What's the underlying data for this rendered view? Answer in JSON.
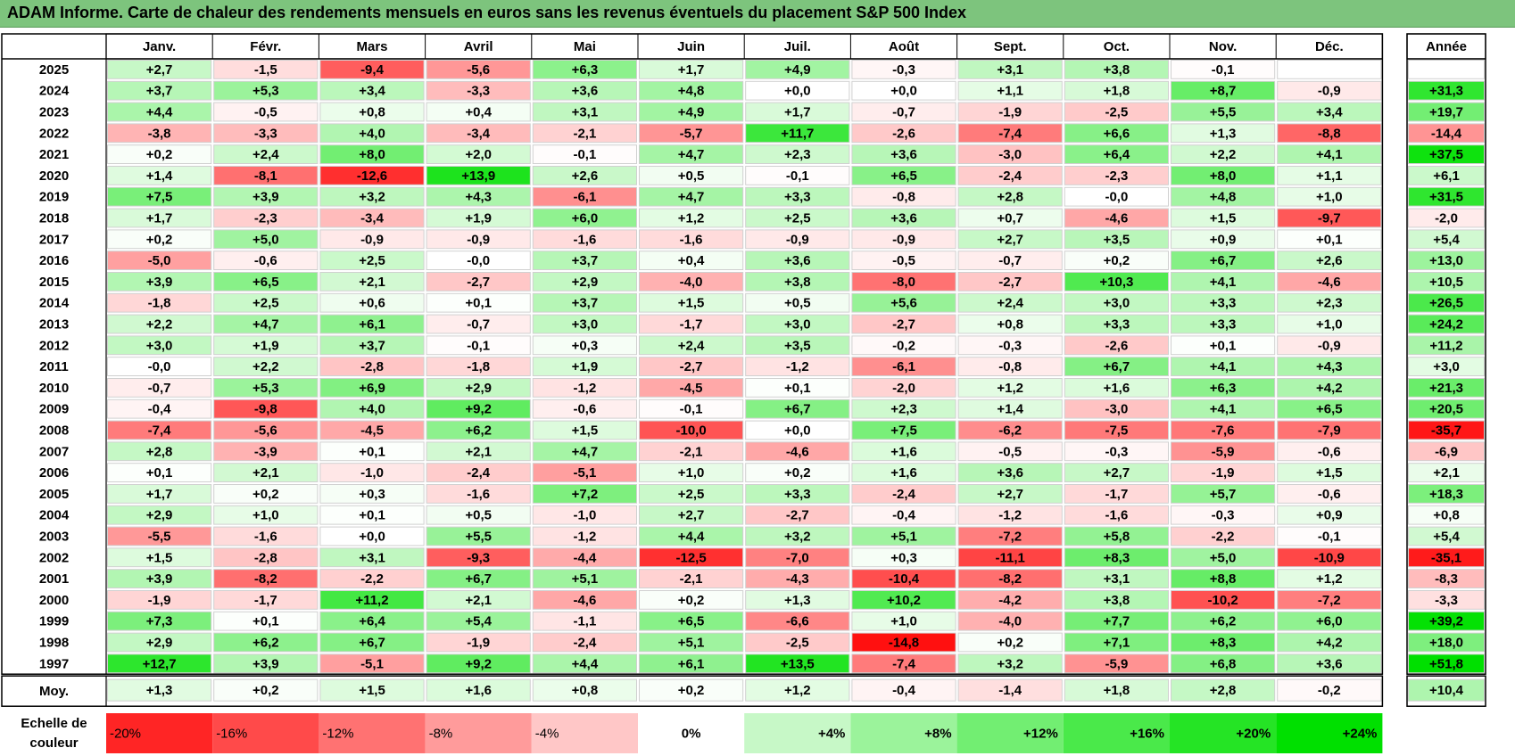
{
  "title": "ADAM Informe. Carte de chaleur des rendements mensuels en euros sans les revenus éventuels du placement S&P 500 Index",
  "chart_data": {
    "type": "heatmap",
    "title": "ADAM Informe. Carte de chaleur des rendements mensuels en euros sans les revenus éventuels du placement S&P 500 Index",
    "months": [
      "Janv.",
      "Févr.",
      "Mars",
      "Avril",
      "Mai",
      "Juin",
      "Juil.",
      "Août",
      "Sept.",
      "Oct.",
      "Nov.",
      "Déc."
    ],
    "year_header": "Année",
    "rows": [
      {
        "year": "2025",
        "values": [
          "+2,7",
          "-1,5",
          "-9,4",
          "-5,6",
          "+6,3",
          "+1,7",
          "+4,9",
          "-0,3",
          "+3,1",
          "+3,8",
          "-0,1",
          ""
        ],
        "annual": ""
      },
      {
        "year": "2024",
        "values": [
          "+3,7",
          "+5,3",
          "+3,4",
          "-3,3",
          "+3,6",
          "+4,8",
          "+0,0",
          "+0,0",
          "+1,1",
          "+1,8",
          "+8,7",
          "-0,9"
        ],
        "annual": "+31,3"
      },
      {
        "year": "2023",
        "values": [
          "+4,4",
          "-0,5",
          "+0,8",
          "+0,4",
          "+3,1",
          "+4,9",
          "+1,7",
          "-0,7",
          "-1,9",
          "-2,5",
          "+5,5",
          "+3,4"
        ],
        "annual": "+19,7"
      },
      {
        "year": "2022",
        "values": [
          "-3,8",
          "-3,3",
          "+4,0",
          "-3,4",
          "-2,1",
          "-5,7",
          "+11,7",
          "-2,6",
          "-7,4",
          "+6,6",
          "+1,3",
          "-8,8"
        ],
        "annual": "-14,4"
      },
      {
        "year": "2021",
        "values": [
          "+0,2",
          "+2,4",
          "+8,0",
          "+2,0",
          "-0,1",
          "+4,7",
          "+2,3",
          "+3,6",
          "-3,0",
          "+6,4",
          "+2,2",
          "+4,1"
        ],
        "annual": "+37,5"
      },
      {
        "year": "2020",
        "values": [
          "+1,4",
          "-8,1",
          "-12,6",
          "+13,9",
          "+2,6",
          "+0,5",
          "-0,1",
          "+6,5",
          "-2,4",
          "-2,3",
          "+8,0",
          "+1,1"
        ],
        "annual": "+6,1"
      },
      {
        "year": "2019",
        "values": [
          "+7,5",
          "+3,9",
          "+3,2",
          "+4,3",
          "-6,1",
          "+4,7",
          "+3,3",
          "-0,8",
          "+2,8",
          "-0,0",
          "+4,8",
          "+1,0"
        ],
        "annual": "+31,5"
      },
      {
        "year": "2018",
        "values": [
          "+1,7",
          "-2,3",
          "-3,4",
          "+1,9",
          "+6,0",
          "+1,2",
          "+2,5",
          "+3,6",
          "+0,7",
          "-4,6",
          "+1,5",
          "-9,7"
        ],
        "annual": "-2,0"
      },
      {
        "year": "2017",
        "values": [
          "+0,2",
          "+5,0",
          "-0,9",
          "-0,9",
          "-1,6",
          "-1,6",
          "-0,9",
          "-0,9",
          "+2,7",
          "+3,5",
          "+0,9",
          "+0,1"
        ],
        "annual": "+5,4"
      },
      {
        "year": "2016",
        "values": [
          "-5,0",
          "-0,6",
          "+2,5",
          "-0,0",
          "+3,7",
          "+0,4",
          "+3,6",
          "-0,5",
          "-0,7",
          "+0,2",
          "+6,7",
          "+2,6"
        ],
        "annual": "+13,0"
      },
      {
        "year": "2015",
        "values": [
          "+3,9",
          "+6,5",
          "+2,1",
          "-2,7",
          "+2,9",
          "-4,0",
          "+3,8",
          "-8,0",
          "-2,7",
          "+10,3",
          "+4,1",
          "-4,6"
        ],
        "annual": "+10,5"
      },
      {
        "year": "2014",
        "values": [
          "-1,8",
          "+2,5",
          "+0,6",
          "+0,1",
          "+3,7",
          "+1,5",
          "+0,5",
          "+5,6",
          "+2,4",
          "+3,0",
          "+3,3",
          "+2,3"
        ],
        "annual": "+26,5"
      },
      {
        "year": "2013",
        "values": [
          "+2,2",
          "+4,7",
          "+6,1",
          "-0,7",
          "+3,0",
          "-1,7",
          "+3,0",
          "-2,7",
          "+0,8",
          "+3,3",
          "+3,3",
          "+1,0"
        ],
        "annual": "+24,2"
      },
      {
        "year": "2012",
        "values": [
          "+3,0",
          "+1,9",
          "+3,7",
          "-0,1",
          "+0,3",
          "+2,4",
          "+3,5",
          "-0,2",
          "-0,3",
          "-2,6",
          "+0,1",
          "-0,9"
        ],
        "annual": "+11,2"
      },
      {
        "year": "2011",
        "values": [
          "-0,0",
          "+2,2",
          "-2,8",
          "-1,8",
          "+1,9",
          "-2,7",
          "-1,2",
          "-6,1",
          "-0,8",
          "+6,7",
          "+4,1",
          "+4,3"
        ],
        "annual": "+3,0"
      },
      {
        "year": "2010",
        "values": [
          "-0,7",
          "+5,3",
          "+6,9",
          "+2,9",
          "-1,2",
          "-4,5",
          "+0,1",
          "-2,0",
          "+1,2",
          "+1,6",
          "+6,3",
          "+4,2"
        ],
        "annual": "+21,3"
      },
      {
        "year": "2009",
        "values": [
          "-0,4",
          "-9,8",
          "+4,0",
          "+9,2",
          "-0,6",
          "-0,1",
          "+6,7",
          "+2,3",
          "+1,4",
          "-3,0",
          "+4,1",
          "+6,5"
        ],
        "annual": "+20,5"
      },
      {
        "year": "2008",
        "values": [
          "-7,4",
          "-5,6",
          "-4,5",
          "+6,2",
          "+1,5",
          "-10,0",
          "+0,0",
          "+7,5",
          "-6,2",
          "-7,5",
          "-7,6",
          "-7,9"
        ],
        "annual": "-35,7"
      },
      {
        "year": "2007",
        "values": [
          "+2,8",
          "-3,9",
          "+0,1",
          "+2,1",
          "+4,7",
          "-2,1",
          "-4,6",
          "+1,6",
          "-0,5",
          "-0,3",
          "-5,9",
          "-0,6"
        ],
        "annual": "-6,9"
      },
      {
        "year": "2006",
        "values": [
          "+0,1",
          "+2,1",
          "-1,0",
          "-2,4",
          "-5,1",
          "+1,0",
          "+0,2",
          "+1,6",
          "+3,6",
          "+2,7",
          "-1,9",
          "+1,5"
        ],
        "annual": "+2,1"
      },
      {
        "year": "2005",
        "values": [
          "+1,7",
          "+0,2",
          "+0,3",
          "-1,6",
          "+7,2",
          "+2,5",
          "+3,3",
          "-2,4",
          "+2,7",
          "-1,7",
          "+5,7",
          "-0,6"
        ],
        "annual": "+18,3"
      },
      {
        "year": "2004",
        "values": [
          "+2,9",
          "+1,0",
          "+0,1",
          "+0,5",
          "-1,0",
          "+2,7",
          "-2,7",
          "-0,4",
          "-1,2",
          "-1,6",
          "-0,3",
          "+0,9"
        ],
        "annual": "+0,8"
      },
      {
        "year": "2003",
        "values": [
          "-5,5",
          "-1,6",
          "+0,0",
          "+5,5",
          "-1,2",
          "+4,4",
          "+3,2",
          "+5,1",
          "-7,2",
          "+5,8",
          "-2,2",
          "-0,1"
        ],
        "annual": "+5,4"
      },
      {
        "year": "2002",
        "values": [
          "+1,5",
          "-2,8",
          "+3,1",
          "-9,3",
          "-4,4",
          "-12,5",
          "-7,0",
          "+0,3",
          "-11,1",
          "+8,3",
          "+5,0",
          "-10,9"
        ],
        "annual": "-35,1"
      },
      {
        "year": "2001",
        "values": [
          "+3,9",
          "-8,2",
          "-2,2",
          "+6,7",
          "+5,1",
          "-2,1",
          "-4,3",
          "-10,4",
          "-8,2",
          "+3,1",
          "+8,8",
          "+1,2"
        ],
        "annual": "-8,3"
      },
      {
        "year": "2000",
        "values": [
          "-1,9",
          "-1,7",
          "+11,2",
          "+2,1",
          "-4,6",
          "+0,2",
          "+1,3",
          "+10,2",
          "-4,2",
          "+3,8",
          "-10,2",
          "-7,2"
        ],
        "annual": "-3,3"
      },
      {
        "year": "1999",
        "values": [
          "+7,3",
          "+0,1",
          "+6,4",
          "+5,4",
          "-1,1",
          "+6,5",
          "-6,6",
          "+1,0",
          "-4,0",
          "+7,7",
          "+6,2",
          "+6,0"
        ],
        "annual": "+39,2"
      },
      {
        "year": "1998",
        "values": [
          "+2,9",
          "+6,2",
          "+6,7",
          "-1,9",
          "-2,4",
          "+5,1",
          "-2,5",
          "-14,8",
          "+0,2",
          "+7,1",
          "+8,3",
          "+4,2"
        ],
        "annual": "+18,0"
      },
      {
        "year": "1997",
        "values": [
          "+12,7",
          "+3,9",
          "-5,1",
          "+9,2",
          "+4,4",
          "+6,1",
          "+13,5",
          "-7,4",
          "+3,2",
          "-5,9",
          "+6,8",
          "+3,6"
        ],
        "annual": "+51,8"
      }
    ],
    "average": {
      "label": "Moy.",
      "values": [
        "+1,3",
        "+0,2",
        "+1,5",
        "+1,6",
        "+0,8",
        "+0,2",
        "+1,2",
        "-0,4",
        "-1,4",
        "+1,8",
        "+2,8",
        "-0,2"
      ],
      "annual": "+10,4"
    },
    "scale": {
      "label_line1": "Echelle de",
      "label_line2": "couleur",
      "steps": [
        {
          "label": "-20%",
          "value": -20
        },
        {
          "label": "-16%",
          "value": -16
        },
        {
          "label": "-12%",
          "value": -12
        },
        {
          "label": "-8%",
          "value": -8
        },
        {
          "label": "-4%",
          "value": -4
        },
        {
          "label": "0%",
          "value": 0
        },
        {
          "label": "+4%",
          "value": 4
        },
        {
          "label": "+8%",
          "value": 8
        },
        {
          "label": "+12%",
          "value": 12
        },
        {
          "label": "+16%",
          "value": 16
        },
        {
          "label": "+20%",
          "value": 20
        },
        {
          "label": "+24%",
          "value": 24
        }
      ]
    },
    "colors": {
      "negative_max": "#ff0000",
      "neutral": "#ffffff",
      "positive_max": "#00e000",
      "title_bar": "#7dc47d"
    }
  }
}
